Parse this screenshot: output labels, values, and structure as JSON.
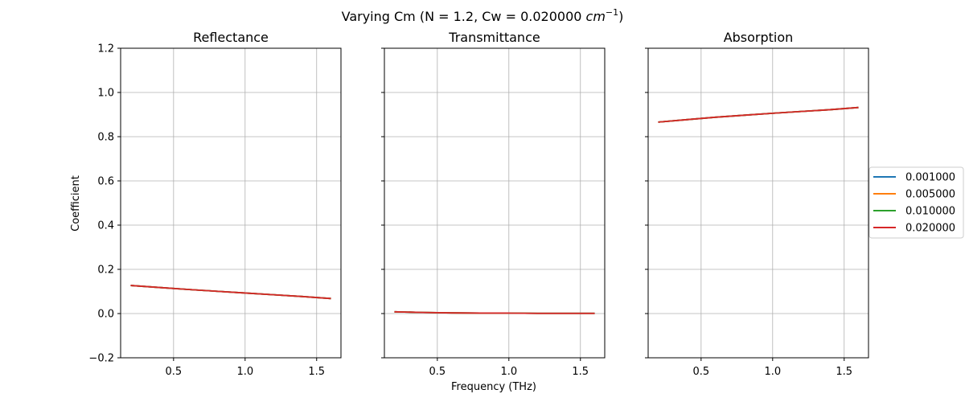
{
  "chart_data": {
    "type": "line",
    "title": "Varying Cm (N = 1.2, Cw = 0.020000 ",
    "title_unit_base": "cm",
    "title_unit_exp": "−1",
    "title_close": ")",
    "xlabel": "Frequency (THz)",
    "ylabel": "Coefficient",
    "xlim": [
      0.13,
      1.67
    ],
    "ylim": [
      -0.2,
      1.2
    ],
    "x_ticks": [
      0.5,
      1.0,
      1.5
    ],
    "x_tick_labels": [
      "0.5",
      "1.0",
      "1.5"
    ],
    "y_ticks": [
      -0.2,
      0.0,
      0.2,
      0.4,
      0.6,
      0.8,
      1.0,
      1.2
    ],
    "y_tick_labels": [
      "−0.2",
      "0.0",
      "0.2",
      "0.4",
      "0.6",
      "0.8",
      "1.0",
      "1.2"
    ],
    "grid": true,
    "legend_position": "right",
    "x": [
      0.2,
      0.4,
      0.6,
      0.8,
      1.0,
      1.2,
      1.4,
      1.6
    ],
    "series_colors": [
      "#1f77b4",
      "#ff7f0e",
      "#2ca02c",
      "#d62728"
    ],
    "legend": [
      "0.001000",
      "0.005000",
      "0.010000",
      "0.020000"
    ],
    "panels": [
      {
        "title": "Reflectance",
        "series": [
          {
            "name": "0.001000",
            "values": [
              0.127,
              0.118,
              0.109,
              0.101,
              0.093,
              0.085,
              0.077,
              0.068
            ]
          },
          {
            "name": "0.005000",
            "values": [
              0.127,
              0.118,
              0.109,
              0.101,
              0.093,
              0.085,
              0.077,
              0.068
            ]
          },
          {
            "name": "0.010000",
            "values": [
              0.127,
              0.118,
              0.109,
              0.101,
              0.093,
              0.085,
              0.077,
              0.068
            ]
          },
          {
            "name": "0.020000",
            "values": [
              0.127,
              0.118,
              0.109,
              0.101,
              0.093,
              0.085,
              0.077,
              0.068
            ]
          }
        ]
      },
      {
        "title": "Transmittance",
        "series": [
          {
            "name": "0.001000",
            "values": [
              0.008,
              0.005,
              0.003,
              0.002,
              0.002,
              0.001,
              0.001,
              0.001
            ]
          },
          {
            "name": "0.005000",
            "values": [
              0.008,
              0.005,
              0.003,
              0.002,
              0.002,
              0.001,
              0.001,
              0.001
            ]
          },
          {
            "name": "0.010000",
            "values": [
              0.008,
              0.005,
              0.003,
              0.002,
              0.002,
              0.001,
              0.001,
              0.001
            ]
          },
          {
            "name": "0.020000",
            "values": [
              0.008,
              0.005,
              0.003,
              0.002,
              0.002,
              0.001,
              0.001,
              0.001
            ]
          }
        ]
      },
      {
        "title": "Absorption",
        "series": [
          {
            "name": "0.001000",
            "values": [
              0.866,
              0.877,
              0.888,
              0.897,
              0.906,
              0.914,
              0.922,
              0.932
            ]
          },
          {
            "name": "0.005000",
            "values": [
              0.866,
              0.877,
              0.888,
              0.897,
              0.906,
              0.914,
              0.922,
              0.932
            ]
          },
          {
            "name": "0.010000",
            "values": [
              0.866,
              0.877,
              0.888,
              0.897,
              0.906,
              0.914,
              0.922,
              0.932
            ]
          },
          {
            "name": "0.020000",
            "values": [
              0.866,
              0.877,
              0.888,
              0.897,
              0.906,
              0.914,
              0.922,
              0.932
            ]
          }
        ]
      }
    ]
  }
}
